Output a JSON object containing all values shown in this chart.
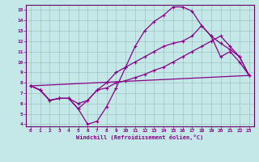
{
  "xlabel": "Windchill (Refroidissement éolien,°C)",
  "bg_color": "#c4e8e8",
  "grid_color": "#9bbaba",
  "line_color": "#880088",
  "spine_color": "#660066",
  "xlim": [
    -0.5,
    23.5
  ],
  "ylim": [
    3.8,
    15.5
  ],
  "xticks": [
    0,
    1,
    2,
    3,
    4,
    5,
    6,
    7,
    8,
    9,
    10,
    11,
    12,
    13,
    14,
    15,
    16,
    17,
    18,
    19,
    20,
    21,
    22,
    23
  ],
  "yticks": [
    4,
    5,
    6,
    7,
    8,
    9,
    10,
    11,
    12,
    13,
    14,
    15
  ],
  "curve1_x": [
    0,
    1,
    2,
    3,
    4,
    5,
    6,
    7,
    8,
    9,
    10,
    11,
    12,
    13,
    14,
    15,
    16,
    17,
    18,
    19,
    20,
    21,
    22,
    23
  ],
  "curve1_y": [
    7.7,
    7.3,
    6.3,
    6.5,
    6.5,
    5.5,
    4.0,
    4.3,
    5.7,
    7.5,
    9.5,
    11.5,
    13.0,
    13.9,
    14.5,
    15.3,
    15.3,
    14.9,
    13.5,
    12.5,
    10.5,
    11.0,
    10.0,
    8.7
  ],
  "curve2_x": [
    0,
    1,
    2,
    3,
    4,
    5,
    6,
    7,
    8,
    9,
    10,
    11,
    12,
    13,
    14,
    15,
    16,
    17,
    18,
    19,
    20,
    21,
    22,
    23
  ],
  "curve2_y": [
    7.7,
    7.3,
    6.3,
    6.5,
    6.5,
    5.5,
    6.3,
    7.3,
    8.0,
    9.0,
    9.5,
    10.0,
    10.5,
    11.0,
    11.5,
    11.8,
    12.0,
    12.5,
    13.5,
    12.5,
    11.8,
    11.2,
    10.5,
    8.7
  ],
  "curve3_x": [
    0,
    23
  ],
  "curve3_y": [
    7.7,
    8.7
  ],
  "curve4_x": [
    0,
    1,
    2,
    3,
    4,
    5,
    6,
    7,
    8,
    9,
    10,
    11,
    12,
    13,
    14,
    15,
    16,
    17,
    18,
    19,
    20,
    21,
    22,
    23
  ],
  "curve4_y": [
    7.7,
    7.3,
    6.3,
    6.5,
    6.5,
    6.0,
    6.3,
    7.3,
    7.5,
    8.0,
    8.2,
    8.5,
    8.8,
    9.2,
    9.5,
    10.0,
    10.5,
    11.0,
    11.5,
    12.0,
    12.5,
    11.5,
    10.5,
    8.7
  ]
}
